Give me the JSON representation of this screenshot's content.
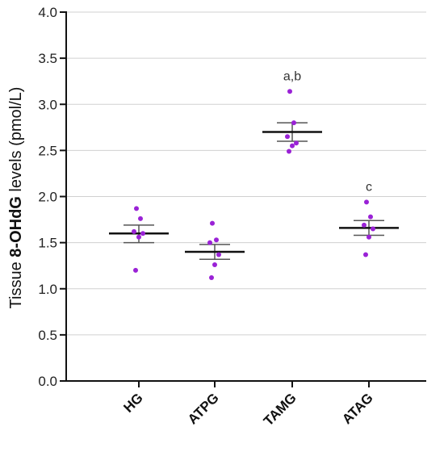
{
  "chart_data": {
    "type": "scatter",
    "ylabel_parts": [
      "Tissue ",
      "8-OHdG",
      " levels (pmol/L)"
    ],
    "ylim": [
      0,
      4
    ],
    "yticks": [
      0,
      0.5,
      1,
      1.5,
      2,
      2.5,
      3,
      3.5,
      4
    ],
    "ytick_labels": [
      "0.0",
      "0.5",
      "1.0",
      "1.5",
      "2.0",
      "2.5",
      "3.0",
      "3.5",
      "4.0"
    ],
    "grid": true,
    "categories": [
      "HG",
      "ATPG",
      "TAMG",
      "ATAG"
    ],
    "groups": [
      {
        "name": "HG",
        "points": [
          1.87,
          1.76,
          1.62,
          1.6,
          1.56,
          1.2
        ],
        "mean": 1.6,
        "sem_low": 1.5,
        "sem_high": 1.69,
        "annotation": ""
      },
      {
        "name": "ATPG",
        "points": [
          1.71,
          1.53,
          1.5,
          1.37,
          1.26,
          1.12
        ],
        "mean": 1.4,
        "sem_low": 1.32,
        "sem_high": 1.48,
        "annotation": ""
      },
      {
        "name": "TAMG",
        "points": [
          3.14,
          2.8,
          2.65,
          2.58,
          2.55,
          2.49
        ],
        "mean": 2.7,
        "sem_low": 2.6,
        "sem_high": 2.8,
        "annotation": "a,b"
      },
      {
        "name": "ATAG",
        "points": [
          1.94,
          1.78,
          1.69,
          1.65,
          1.56,
          1.37
        ],
        "mean": 1.66,
        "sem_low": 1.58,
        "sem_high": 1.74,
        "annotation": "c"
      }
    ],
    "point_color": "#9a22d6",
    "mean_color": "#111111",
    "error_color": "#555555",
    "grid_color": "#d0d0d0"
  }
}
